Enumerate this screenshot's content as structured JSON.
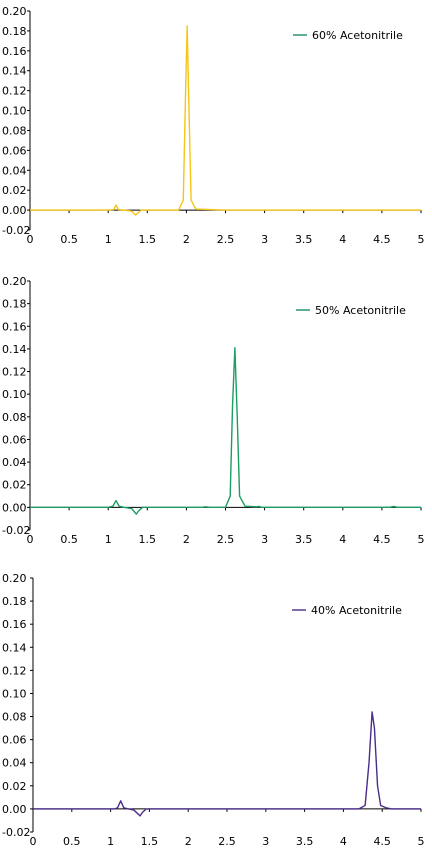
{
  "chart_data": [
    {
      "type": "line",
      "title": "",
      "xlabel": "",
      "ylabel": "",
      "xlim": [
        0,
        5
      ],
      "ylim": [
        -0.02,
        0.2
      ],
      "x_ticks": [
        "0",
        "0.5",
        "1",
        "1.5",
        "2",
        "2.5",
        "3",
        "3.5",
        "4",
        "4.5",
        "5"
      ],
      "y_ticks": [
        "0.20",
        "0.18",
        "0.16",
        "0.14",
        "0.12",
        "0.10",
        "0.08",
        "0.06",
        "0.04",
        "0.02",
        "0.00",
        "-0.02"
      ],
      "grid": false,
      "legend": "top-right",
      "legend_swatch_color": "#1a8a6a",
      "series": [
        {
          "name": "60% Acetonitrile",
          "color": "#f5c518",
          "x": [
            0,
            1.0,
            1.07,
            1.1,
            1.13,
            1.2,
            1.3,
            1.35,
            1.38,
            1.42,
            1.5,
            1.9,
            1.96,
            1.99,
            2.01,
            2.03,
            2.06,
            2.12,
            2.5,
            5.0
          ],
          "y": [
            0,
            0,
            0.0005,
            0.005,
            0.0005,
            0,
            -0.001,
            -0.005,
            -0.003,
            0,
            0,
            0,
            0.01,
            0.12,
            0.185,
            0.11,
            0.01,
            0.001,
            0,
            0
          ]
        }
      ]
    },
    {
      "type": "line",
      "title": "",
      "xlabel": "",
      "ylabel": "",
      "xlim": [
        0,
        5
      ],
      "ylim": [
        -0.02,
        0.2
      ],
      "x_ticks": [
        "0",
        "0.5",
        "1",
        "1.5",
        "2",
        "2.5",
        "3",
        "3.5",
        "4",
        "4.5",
        "5"
      ],
      "y_ticks": [
        "0.20",
        "0.18",
        "0.16",
        "0.14",
        "0.12",
        "0.10",
        "0.08",
        "0.06",
        "0.04",
        "0.02",
        "0.00",
        "-0.02"
      ],
      "grid": false,
      "legend": "top-right",
      "legend_swatch_color": "#1a8a6a",
      "series": [
        {
          "name": "50% Acetonitrile",
          "color": "#1a9e62",
          "x": [
            0,
            1.0,
            1.06,
            1.1,
            1.14,
            1.2,
            1.3,
            1.36,
            1.39,
            1.44,
            1.6,
            2.2,
            2.24,
            2.3,
            2.5,
            2.56,
            2.59,
            2.62,
            2.65,
            2.68,
            2.75,
            2.9,
            2.93,
            2.96,
            4.6,
            4.65,
            4.7,
            5.0
          ],
          "y": [
            0,
            0,
            0.001,
            0.006,
            0.001,
            0,
            -0.001,
            -0.006,
            -0.003,
            0,
            0,
            0,
            0.0005,
            0,
            0,
            0.01,
            0.09,
            0.141,
            0.08,
            0.01,
            0.001,
            0.0005,
            0.0008,
            0,
            0,
            0.0008,
            0,
            0
          ]
        }
      ]
    },
    {
      "type": "line",
      "title": "",
      "xlabel": "",
      "ylabel": "",
      "xlim": [
        0,
        5
      ],
      "ylim": [
        -0.02,
        0.2
      ],
      "x_ticks": [
        "0",
        "0.5",
        "1",
        "1.5",
        "2",
        "2.5",
        "3",
        "3.5",
        "4",
        "4.5",
        "5"
      ],
      "y_ticks": [
        "0.20",
        "0.18",
        "0.16",
        "0.14",
        "0.12",
        "0.10",
        "0.08",
        "0.06",
        "0.04",
        "0.02",
        "0.00",
        "-0.02"
      ],
      "grid": false,
      "legend": "top-right",
      "legend_swatch_color": "#4a2c8a",
      "series": [
        {
          "name": "40% Acetonitrile",
          "color": "#4a2c8a",
          "x": [
            0,
            1.05,
            1.09,
            1.13,
            1.17,
            1.23,
            1.3,
            1.38,
            1.41,
            1.46,
            1.6,
            4.2,
            4.28,
            4.33,
            4.37,
            4.4,
            4.44,
            4.48,
            4.55,
            4.62,
            5.0
          ],
          "y": [
            0,
            0,
            0.001,
            0.007,
            0.001,
            0,
            -0.001,
            -0.006,
            -0.003,
            0,
            0,
            0,
            0.003,
            0.04,
            0.084,
            0.07,
            0.02,
            0.003,
            0.001,
            0,
            0
          ]
        }
      ]
    }
  ]
}
